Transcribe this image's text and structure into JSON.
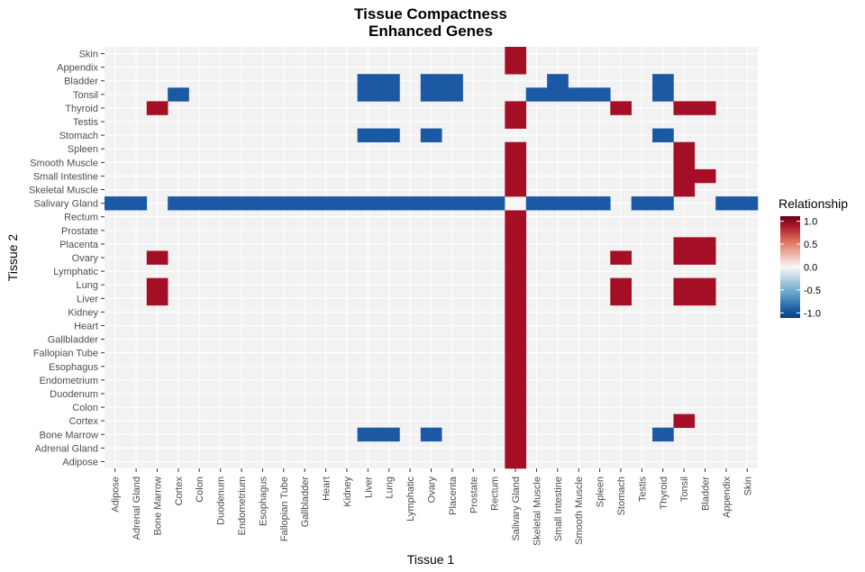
{
  "chart_data": {
    "type": "heatmap",
    "title": "Tissue Compactness",
    "subtitle": "Enhanced Genes",
    "xlabel": "Tissue 1",
    "ylabel": "Tissue 2",
    "x_categories": [
      "Adipose",
      "Adrenal Gland",
      "Bone Marrow",
      "Cortex",
      "Colon",
      "Duodenum",
      "Endometrium",
      "Esophagus",
      "Fallopian Tube",
      "Gallbladder",
      "Heart",
      "Kidney",
      "Liver",
      "Lung",
      "Lymphatic",
      "Ovary",
      "Placenta",
      "Prostate",
      "Rectum",
      "Salivary Gland",
      "Skeletal Muscle",
      "Small Intestine",
      "Smooth Muscle",
      "Spleen",
      "Stomach",
      "Testis",
      "Thyroid",
      "Tonsil",
      "Bladder",
      "Appendix",
      "Skin"
    ],
    "y_categories": [
      "Adipose",
      "Adrenal Gland",
      "Bone Marrow",
      "Cortex",
      "Colon",
      "Duodenum",
      "Endometrium",
      "Esophagus",
      "Fallopian Tube",
      "Gallbladder",
      "Heart",
      "Kidney",
      "Liver",
      "Lung",
      "Lymphatic",
      "Ovary",
      "Placenta",
      "Prostate",
      "Rectum",
      "Salivary Gland",
      "Skeletal Muscle",
      "Small Intestine",
      "Smooth Muscle",
      "Spleen",
      "Stomach",
      "Testis",
      "Thyroid",
      "Tonsil",
      "Bladder",
      "Appendix",
      "Skin"
    ],
    "cells": [
      {
        "x": "Salivary Gland",
        "y": "Adipose",
        "value": 1
      },
      {
        "x": "Salivary Gland",
        "y": "Adrenal Gland",
        "value": 1
      },
      {
        "x": "Liver",
        "y": "Bone Marrow",
        "value": -1
      },
      {
        "x": "Lung",
        "y": "Bone Marrow",
        "value": -1
      },
      {
        "x": "Ovary",
        "y": "Bone Marrow",
        "value": -1
      },
      {
        "x": "Salivary Gland",
        "y": "Bone Marrow",
        "value": 1
      },
      {
        "x": "Thyroid",
        "y": "Bone Marrow",
        "value": -1
      },
      {
        "x": "Salivary Gland",
        "y": "Cortex",
        "value": 1
      },
      {
        "x": "Tonsil",
        "y": "Cortex",
        "value": 1
      },
      {
        "x": "Salivary Gland",
        "y": "Colon",
        "value": 1
      },
      {
        "x": "Salivary Gland",
        "y": "Duodenum",
        "value": 1
      },
      {
        "x": "Salivary Gland",
        "y": "Endometrium",
        "value": 1
      },
      {
        "x": "Salivary Gland",
        "y": "Esophagus",
        "value": 1
      },
      {
        "x": "Salivary Gland",
        "y": "Fallopian Tube",
        "value": 1
      },
      {
        "x": "Salivary Gland",
        "y": "Gallbladder",
        "value": 1
      },
      {
        "x": "Salivary Gland",
        "y": "Heart",
        "value": 1
      },
      {
        "x": "Salivary Gland",
        "y": "Kidney",
        "value": 1
      },
      {
        "x": "Bone Marrow",
        "y": "Liver",
        "value": 1
      },
      {
        "x": "Salivary Gland",
        "y": "Liver",
        "value": 1
      },
      {
        "x": "Stomach",
        "y": "Liver",
        "value": 1
      },
      {
        "x": "Tonsil",
        "y": "Liver",
        "value": 1
      },
      {
        "x": "Bladder",
        "y": "Liver",
        "value": 1
      },
      {
        "x": "Bone Marrow",
        "y": "Lung",
        "value": 1
      },
      {
        "x": "Salivary Gland",
        "y": "Lung",
        "value": 1
      },
      {
        "x": "Stomach",
        "y": "Lung",
        "value": 1
      },
      {
        "x": "Tonsil",
        "y": "Lung",
        "value": 1
      },
      {
        "x": "Bladder",
        "y": "Lung",
        "value": 1
      },
      {
        "x": "Salivary Gland",
        "y": "Lymphatic",
        "value": 1
      },
      {
        "x": "Bone Marrow",
        "y": "Ovary",
        "value": 1
      },
      {
        "x": "Salivary Gland",
        "y": "Ovary",
        "value": 1
      },
      {
        "x": "Stomach",
        "y": "Ovary",
        "value": 1
      },
      {
        "x": "Tonsil",
        "y": "Ovary",
        "value": 1
      },
      {
        "x": "Bladder",
        "y": "Ovary",
        "value": 1
      },
      {
        "x": "Salivary Gland",
        "y": "Placenta",
        "value": 1
      },
      {
        "x": "Tonsil",
        "y": "Placenta",
        "value": 1
      },
      {
        "x": "Bladder",
        "y": "Placenta",
        "value": 1
      },
      {
        "x": "Salivary Gland",
        "y": "Prostate",
        "value": 1
      },
      {
        "x": "Salivary Gland",
        "y": "Rectum",
        "value": 1
      },
      {
        "x": "Adipose",
        "y": "Salivary Gland",
        "value": -1
      },
      {
        "x": "Adrenal Gland",
        "y": "Salivary Gland",
        "value": -1
      },
      {
        "x": "Cortex",
        "y": "Salivary Gland",
        "value": -1
      },
      {
        "x": "Colon",
        "y": "Salivary Gland",
        "value": -1
      },
      {
        "x": "Duodenum",
        "y": "Salivary Gland",
        "value": -1
      },
      {
        "x": "Endometrium",
        "y": "Salivary Gland",
        "value": -1
      },
      {
        "x": "Esophagus",
        "y": "Salivary Gland",
        "value": -1
      },
      {
        "x": "Fallopian Tube",
        "y": "Salivary Gland",
        "value": -1
      },
      {
        "x": "Gallbladder",
        "y": "Salivary Gland",
        "value": -1
      },
      {
        "x": "Heart",
        "y": "Salivary Gland",
        "value": -1
      },
      {
        "x": "Kidney",
        "y": "Salivary Gland",
        "value": -1
      },
      {
        "x": "Liver",
        "y": "Salivary Gland",
        "value": -1
      },
      {
        "x": "Lung",
        "y": "Salivary Gland",
        "value": -1
      },
      {
        "x": "Lymphatic",
        "y": "Salivary Gland",
        "value": -1
      },
      {
        "x": "Ovary",
        "y": "Salivary Gland",
        "value": -1
      },
      {
        "x": "Placenta",
        "y": "Salivary Gland",
        "value": -1
      },
      {
        "x": "Prostate",
        "y": "Salivary Gland",
        "value": -1
      },
      {
        "x": "Rectum",
        "y": "Salivary Gland",
        "value": -1
      },
      {
        "x": "Salivary Gland",
        "y": "Salivary Gland",
        "value": 0
      },
      {
        "x": "Skeletal Muscle",
        "y": "Salivary Gland",
        "value": -1
      },
      {
        "x": "Small Intestine",
        "y": "Salivary Gland",
        "value": -1
      },
      {
        "x": "Smooth Muscle",
        "y": "Salivary Gland",
        "value": -1
      },
      {
        "x": "Spleen",
        "y": "Salivary Gland",
        "value": -1
      },
      {
        "x": "Testis",
        "y": "Salivary Gland",
        "value": -1
      },
      {
        "x": "Thyroid",
        "y": "Salivary Gland",
        "value": -1
      },
      {
        "x": "Appendix",
        "y": "Salivary Gland",
        "value": -1
      },
      {
        "x": "Skin",
        "y": "Salivary Gland",
        "value": -1
      },
      {
        "x": "Salivary Gland",
        "y": "Skeletal Muscle",
        "value": 1
      },
      {
        "x": "Tonsil",
        "y": "Skeletal Muscle",
        "value": 1
      },
      {
        "x": "Salivary Gland",
        "y": "Small Intestine",
        "value": 1
      },
      {
        "x": "Tonsil",
        "y": "Small Intestine",
        "value": 1
      },
      {
        "x": "Bladder",
        "y": "Small Intestine",
        "value": 1
      },
      {
        "x": "Salivary Gland",
        "y": "Smooth Muscle",
        "value": 1
      },
      {
        "x": "Tonsil",
        "y": "Smooth Muscle",
        "value": 1
      },
      {
        "x": "Salivary Gland",
        "y": "Spleen",
        "value": 1
      },
      {
        "x": "Tonsil",
        "y": "Spleen",
        "value": 1
      },
      {
        "x": "Liver",
        "y": "Stomach",
        "value": -1
      },
      {
        "x": "Lung",
        "y": "Stomach",
        "value": -1
      },
      {
        "x": "Ovary",
        "y": "Stomach",
        "value": -1
      },
      {
        "x": "Thyroid",
        "y": "Stomach",
        "value": -1
      },
      {
        "x": "Salivary Gland",
        "y": "Testis",
        "value": 1
      },
      {
        "x": "Bone Marrow",
        "y": "Thyroid",
        "value": 1
      },
      {
        "x": "Salivary Gland",
        "y": "Thyroid",
        "value": 1
      },
      {
        "x": "Stomach",
        "y": "Thyroid",
        "value": 1
      },
      {
        "x": "Tonsil",
        "y": "Thyroid",
        "value": 1
      },
      {
        "x": "Bladder",
        "y": "Thyroid",
        "value": 1
      },
      {
        "x": "Cortex",
        "y": "Tonsil",
        "value": -1
      },
      {
        "x": "Liver",
        "y": "Tonsil",
        "value": -1
      },
      {
        "x": "Lung",
        "y": "Tonsil",
        "value": -1
      },
      {
        "x": "Ovary",
        "y": "Tonsil",
        "value": -1
      },
      {
        "x": "Placenta",
        "y": "Tonsil",
        "value": -1
      },
      {
        "x": "Skeletal Muscle",
        "y": "Tonsil",
        "value": -1
      },
      {
        "x": "Small Intestine",
        "y": "Tonsil",
        "value": -1
      },
      {
        "x": "Smooth Muscle",
        "y": "Tonsil",
        "value": -1
      },
      {
        "x": "Spleen",
        "y": "Tonsil",
        "value": -1
      },
      {
        "x": "Thyroid",
        "y": "Tonsil",
        "value": -1
      },
      {
        "x": "Liver",
        "y": "Bladder",
        "value": -1
      },
      {
        "x": "Lung",
        "y": "Bladder",
        "value": -1
      },
      {
        "x": "Ovary",
        "y": "Bladder",
        "value": -1
      },
      {
        "x": "Placenta",
        "y": "Bladder",
        "value": -1
      },
      {
        "x": "Small Intestine",
        "y": "Bladder",
        "value": -1
      },
      {
        "x": "Thyroid",
        "y": "Bladder",
        "value": -1
      },
      {
        "x": "Salivary Gland",
        "y": "Appendix",
        "value": 1
      },
      {
        "x": "Salivary Gland",
        "y": "Skin",
        "value": 1
      }
    ],
    "legend": {
      "title": "Relationship",
      "ticks": [
        1.0,
        0.5,
        0.0,
        -0.5,
        -1.0
      ],
      "tick_labels": [
        "1.0",
        "0.5",
        "0.0",
        "-0.5",
        "-1.0"
      ],
      "range": [
        -1,
        1
      ],
      "placement": "right"
    },
    "colors": {
      "positive": "#A50F26",
      "negative": "#1B59A4",
      "neutral": "#F7F7F7",
      "panel_background": "#F2F2F2",
      "gridline": "#FFFFFF"
    },
    "grid": true
  }
}
